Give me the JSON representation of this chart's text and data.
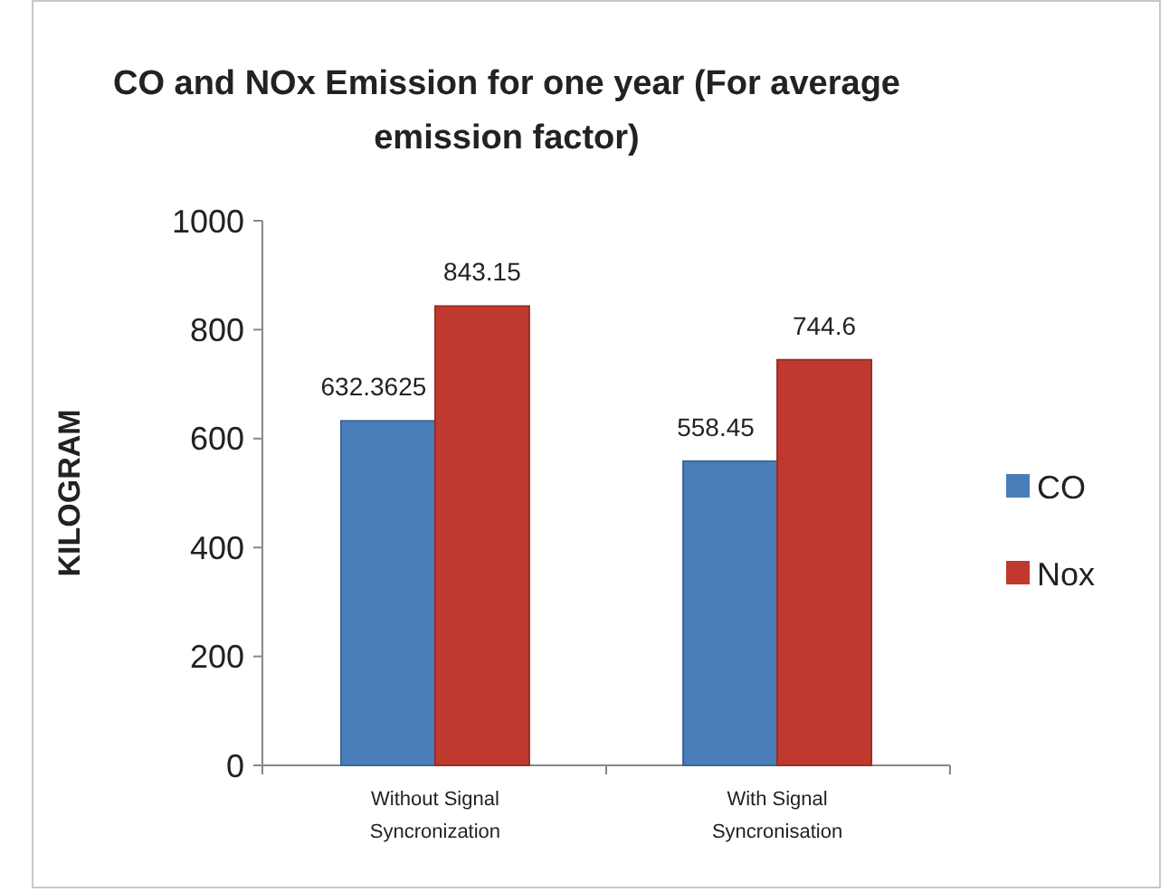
{
  "chart_data": {
    "type": "bar",
    "title": "CO and NOx Emission for one year (For average emission factor)",
    "ylabel": "KILOGRAM",
    "categories": [
      "Without Signal Syncronization",
      "With Signal Syncronisation"
    ],
    "series": [
      {
        "name": "CO",
        "color": "#4a7ebb",
        "values": [
          632.3625,
          558.45
        ]
      },
      {
        "name": "Nox",
        "color": "#c0392f",
        "values": [
          843.15,
          744.6
        ]
      }
    ],
    "ylim": [
      0,
      1000
    ],
    "yticks": [
      0,
      200,
      400,
      600,
      800,
      1000
    ],
    "grid": false,
    "legend": "right",
    "data_labels": true
  }
}
